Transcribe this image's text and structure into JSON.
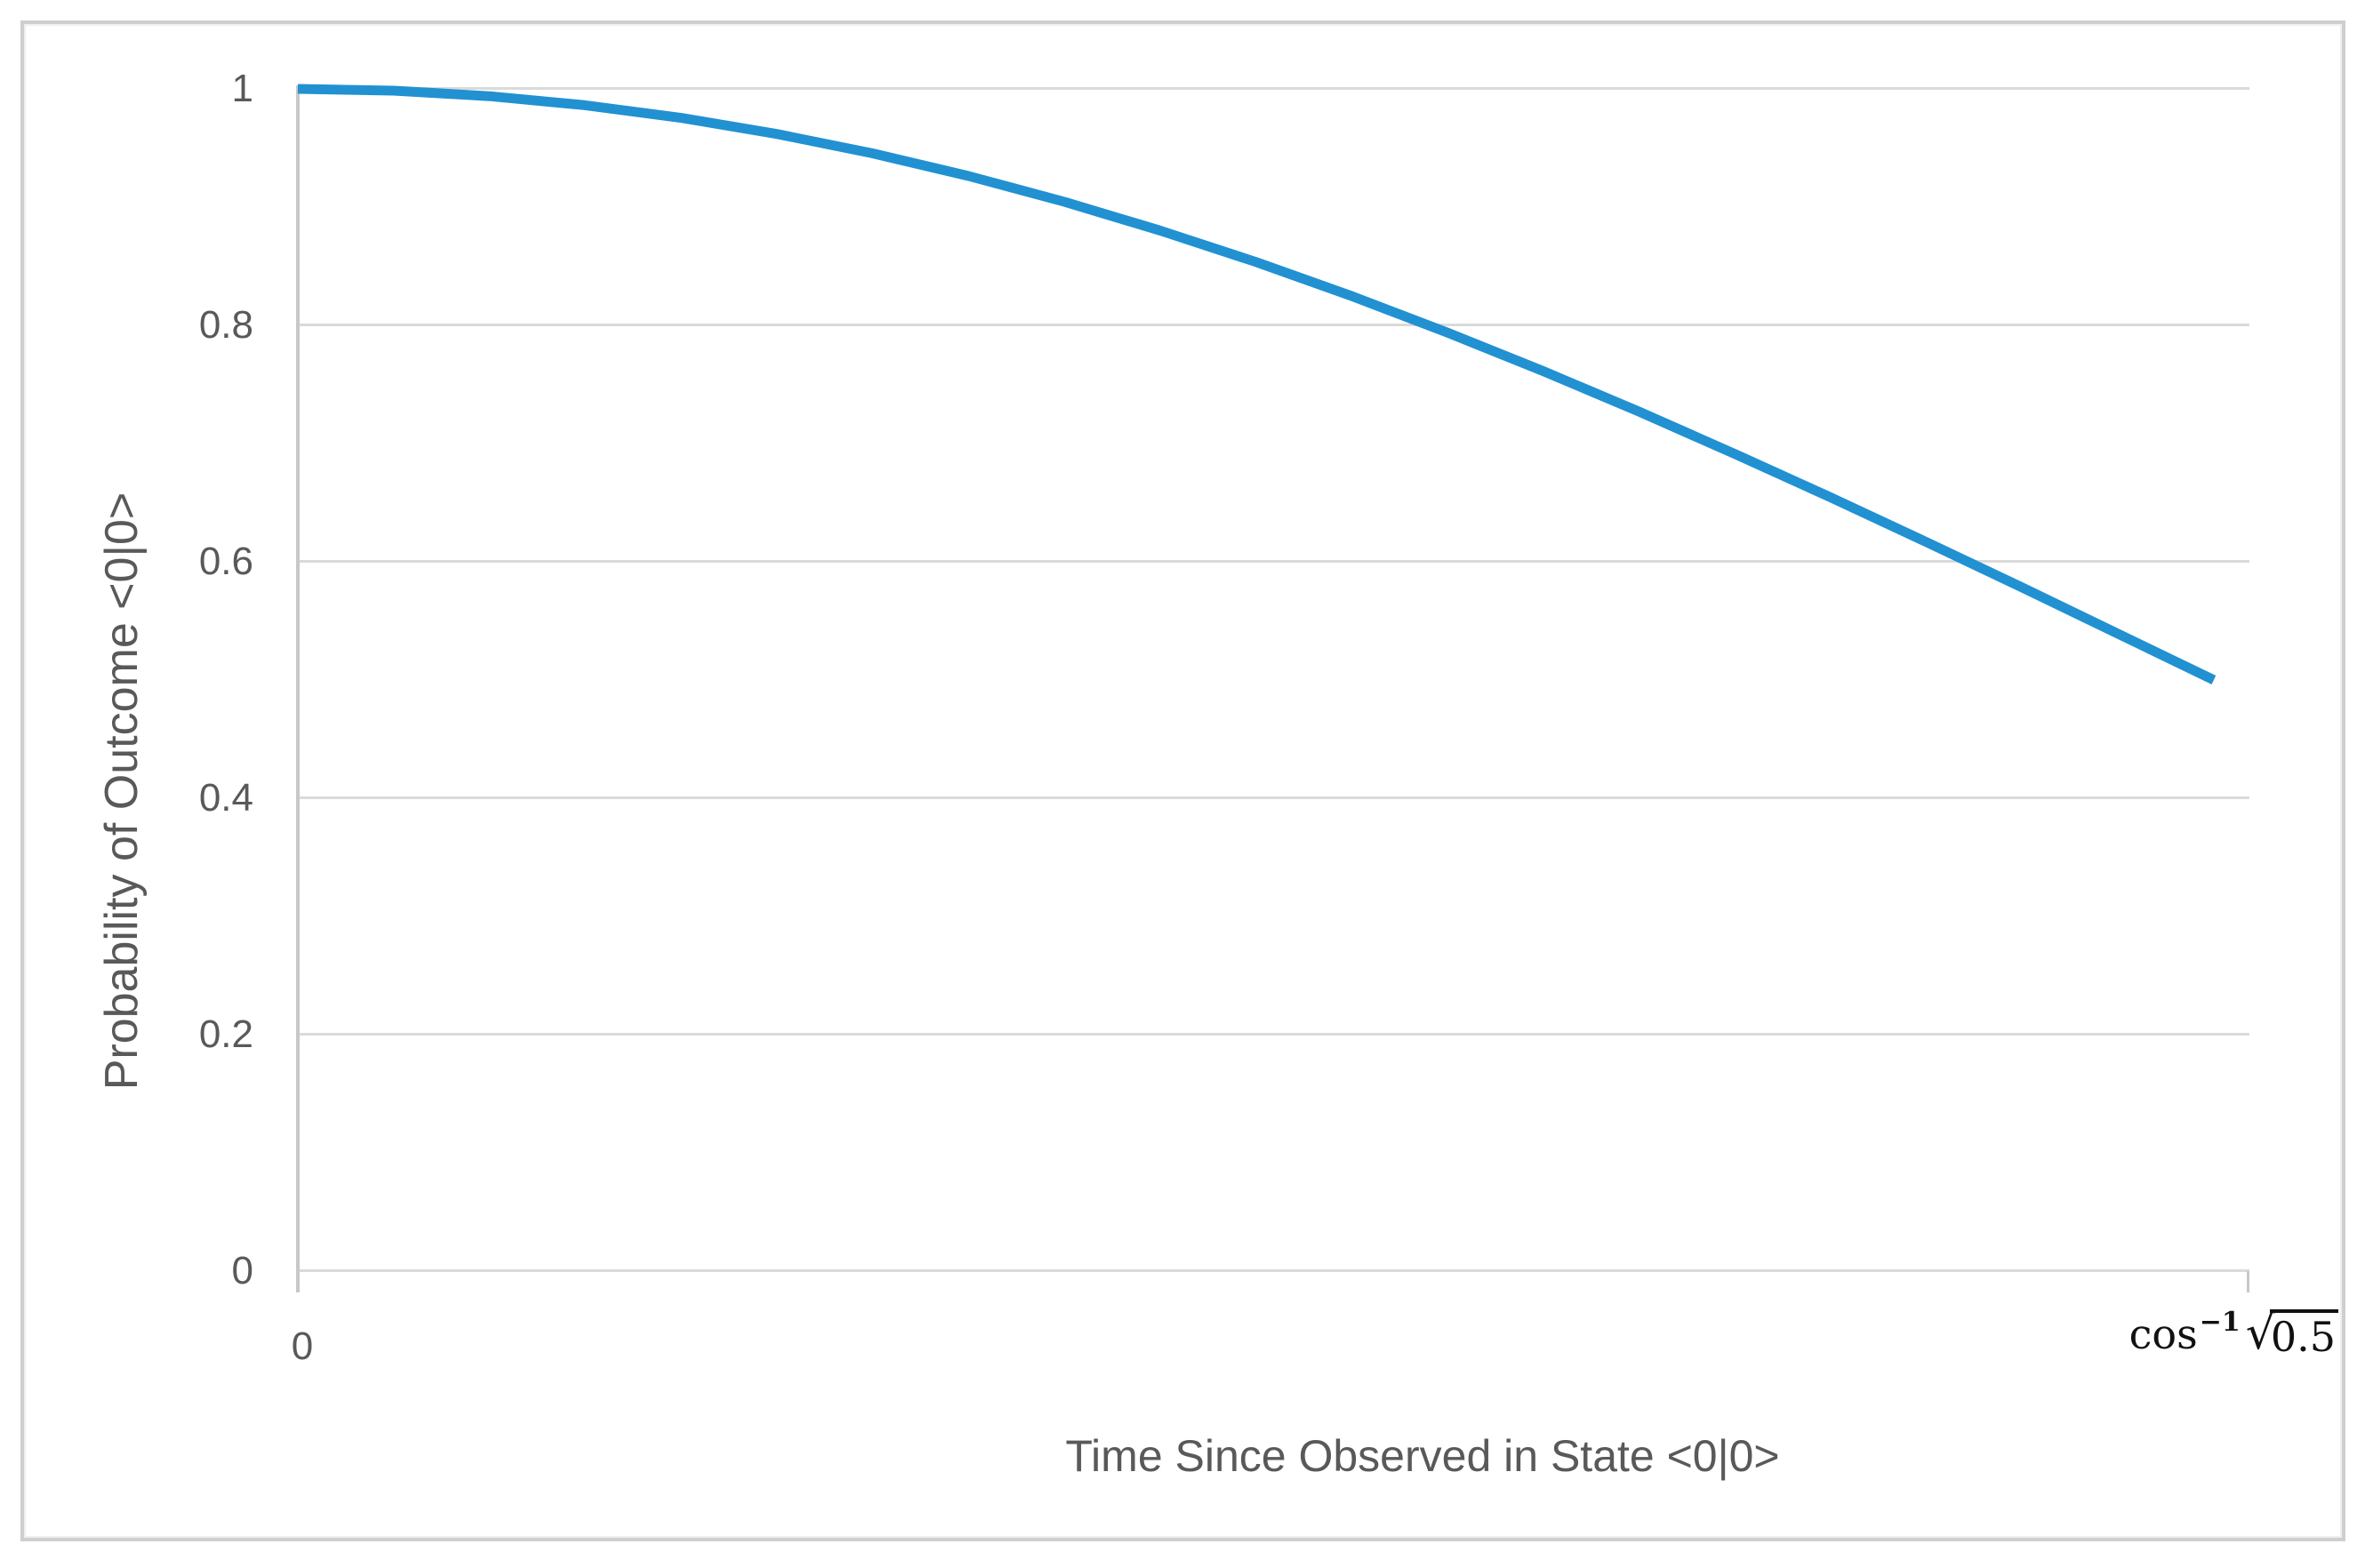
{
  "colors": {
    "line": "#2191d2",
    "gridline": "#dadada",
    "axis_line": "#c8c8c8",
    "text": "#595959",
    "frame_border": "#cfcfcf",
    "background": "#ffffff"
  },
  "chart_data": {
    "type": "line",
    "title": "",
    "xlabel": "Time Since Observed in State <0|0>",
    "ylabel": "Probability of Outcome <0|0>",
    "xlim": [
      0,
      0.8
    ],
    "ylim": [
      0,
      1
    ],
    "grid": "horizontal",
    "legend": "none",
    "x_tick_labels": [
      "0",
      "cos⁻¹ √0.5"
    ],
    "x_tick_math": {
      "base": "cos",
      "exponent": "−1",
      "radical_sign": "√",
      "radicand": "0.5"
    },
    "y_ticks": [
      1,
      0.8,
      0.6,
      0.4,
      0.2,
      0
    ],
    "y_tick_labels": [
      "1",
      "0.8",
      "0.6",
      "0.4",
      "0.2",
      "0"
    ],
    "series": [
      {
        "points": [
          [
            0.0,
            1.0
          ],
          [
            0.0393,
            0.9985
          ],
          [
            0.0785,
            0.9938
          ],
          [
            0.1178,
            0.9862
          ],
          [
            0.1571,
            0.9755
          ],
          [
            0.1963,
            0.9619
          ],
          [
            0.2356,
            0.9455
          ],
          [
            0.2749,
            0.9263
          ],
          [
            0.3142,
            0.9045
          ],
          [
            0.3534,
            0.8802
          ],
          [
            0.3927,
            0.8536
          ],
          [
            0.432,
            0.8247
          ],
          [
            0.4712,
            0.7939
          ],
          [
            0.5105,
            0.7613
          ],
          [
            0.5498,
            0.727
          ],
          [
            0.589,
            0.6913
          ],
          [
            0.6283,
            0.6545
          ],
          [
            0.6676,
            0.6167
          ],
          [
            0.7069,
            0.5782
          ],
          [
            0.7461,
            0.5392
          ],
          [
            0.7854,
            0.5
          ]
        ]
      }
    ]
  }
}
